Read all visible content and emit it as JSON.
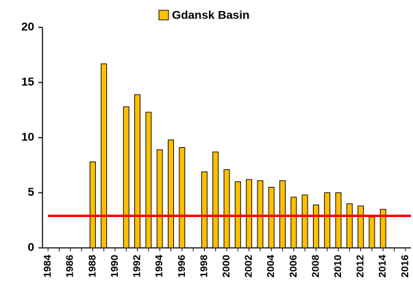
{
  "chart_data": {
    "type": "bar",
    "categories": [
      "1984",
      null,
      "1986",
      null,
      "1988",
      null,
      "1990",
      null,
      "1992",
      null,
      "1994",
      null,
      "1996",
      null,
      "1998",
      null,
      "2000",
      null,
      "2002",
      null,
      "2004",
      null,
      "2006",
      null,
      "2008",
      null,
      "2010",
      null,
      "2012",
      null,
      "2014",
      null,
      "2016"
    ],
    "series": [
      {
        "name": "Gdansk Basin",
        "color": "#ffc000",
        "values": [
          null,
          null,
          null,
          null,
          7.8,
          16.7,
          null,
          12.8,
          13.9,
          12.3,
          8.9,
          9.8,
          9.1,
          null,
          6.9,
          8.7,
          7.1,
          6.0,
          6.2,
          6.1,
          5.5,
          6.1,
          4.6,
          4.8,
          3.9,
          5.0,
          5.0,
          4.0,
          3.8,
          2.8,
          3.5,
          null,
          null
        ]
      }
    ],
    "ylim": [
      0,
      20
    ],
    "yticks": [
      0,
      5,
      10,
      15,
      20
    ],
    "reference_line": {
      "value": 2.9,
      "color": "#ff0000"
    },
    "legend": "top",
    "grid": false
  }
}
